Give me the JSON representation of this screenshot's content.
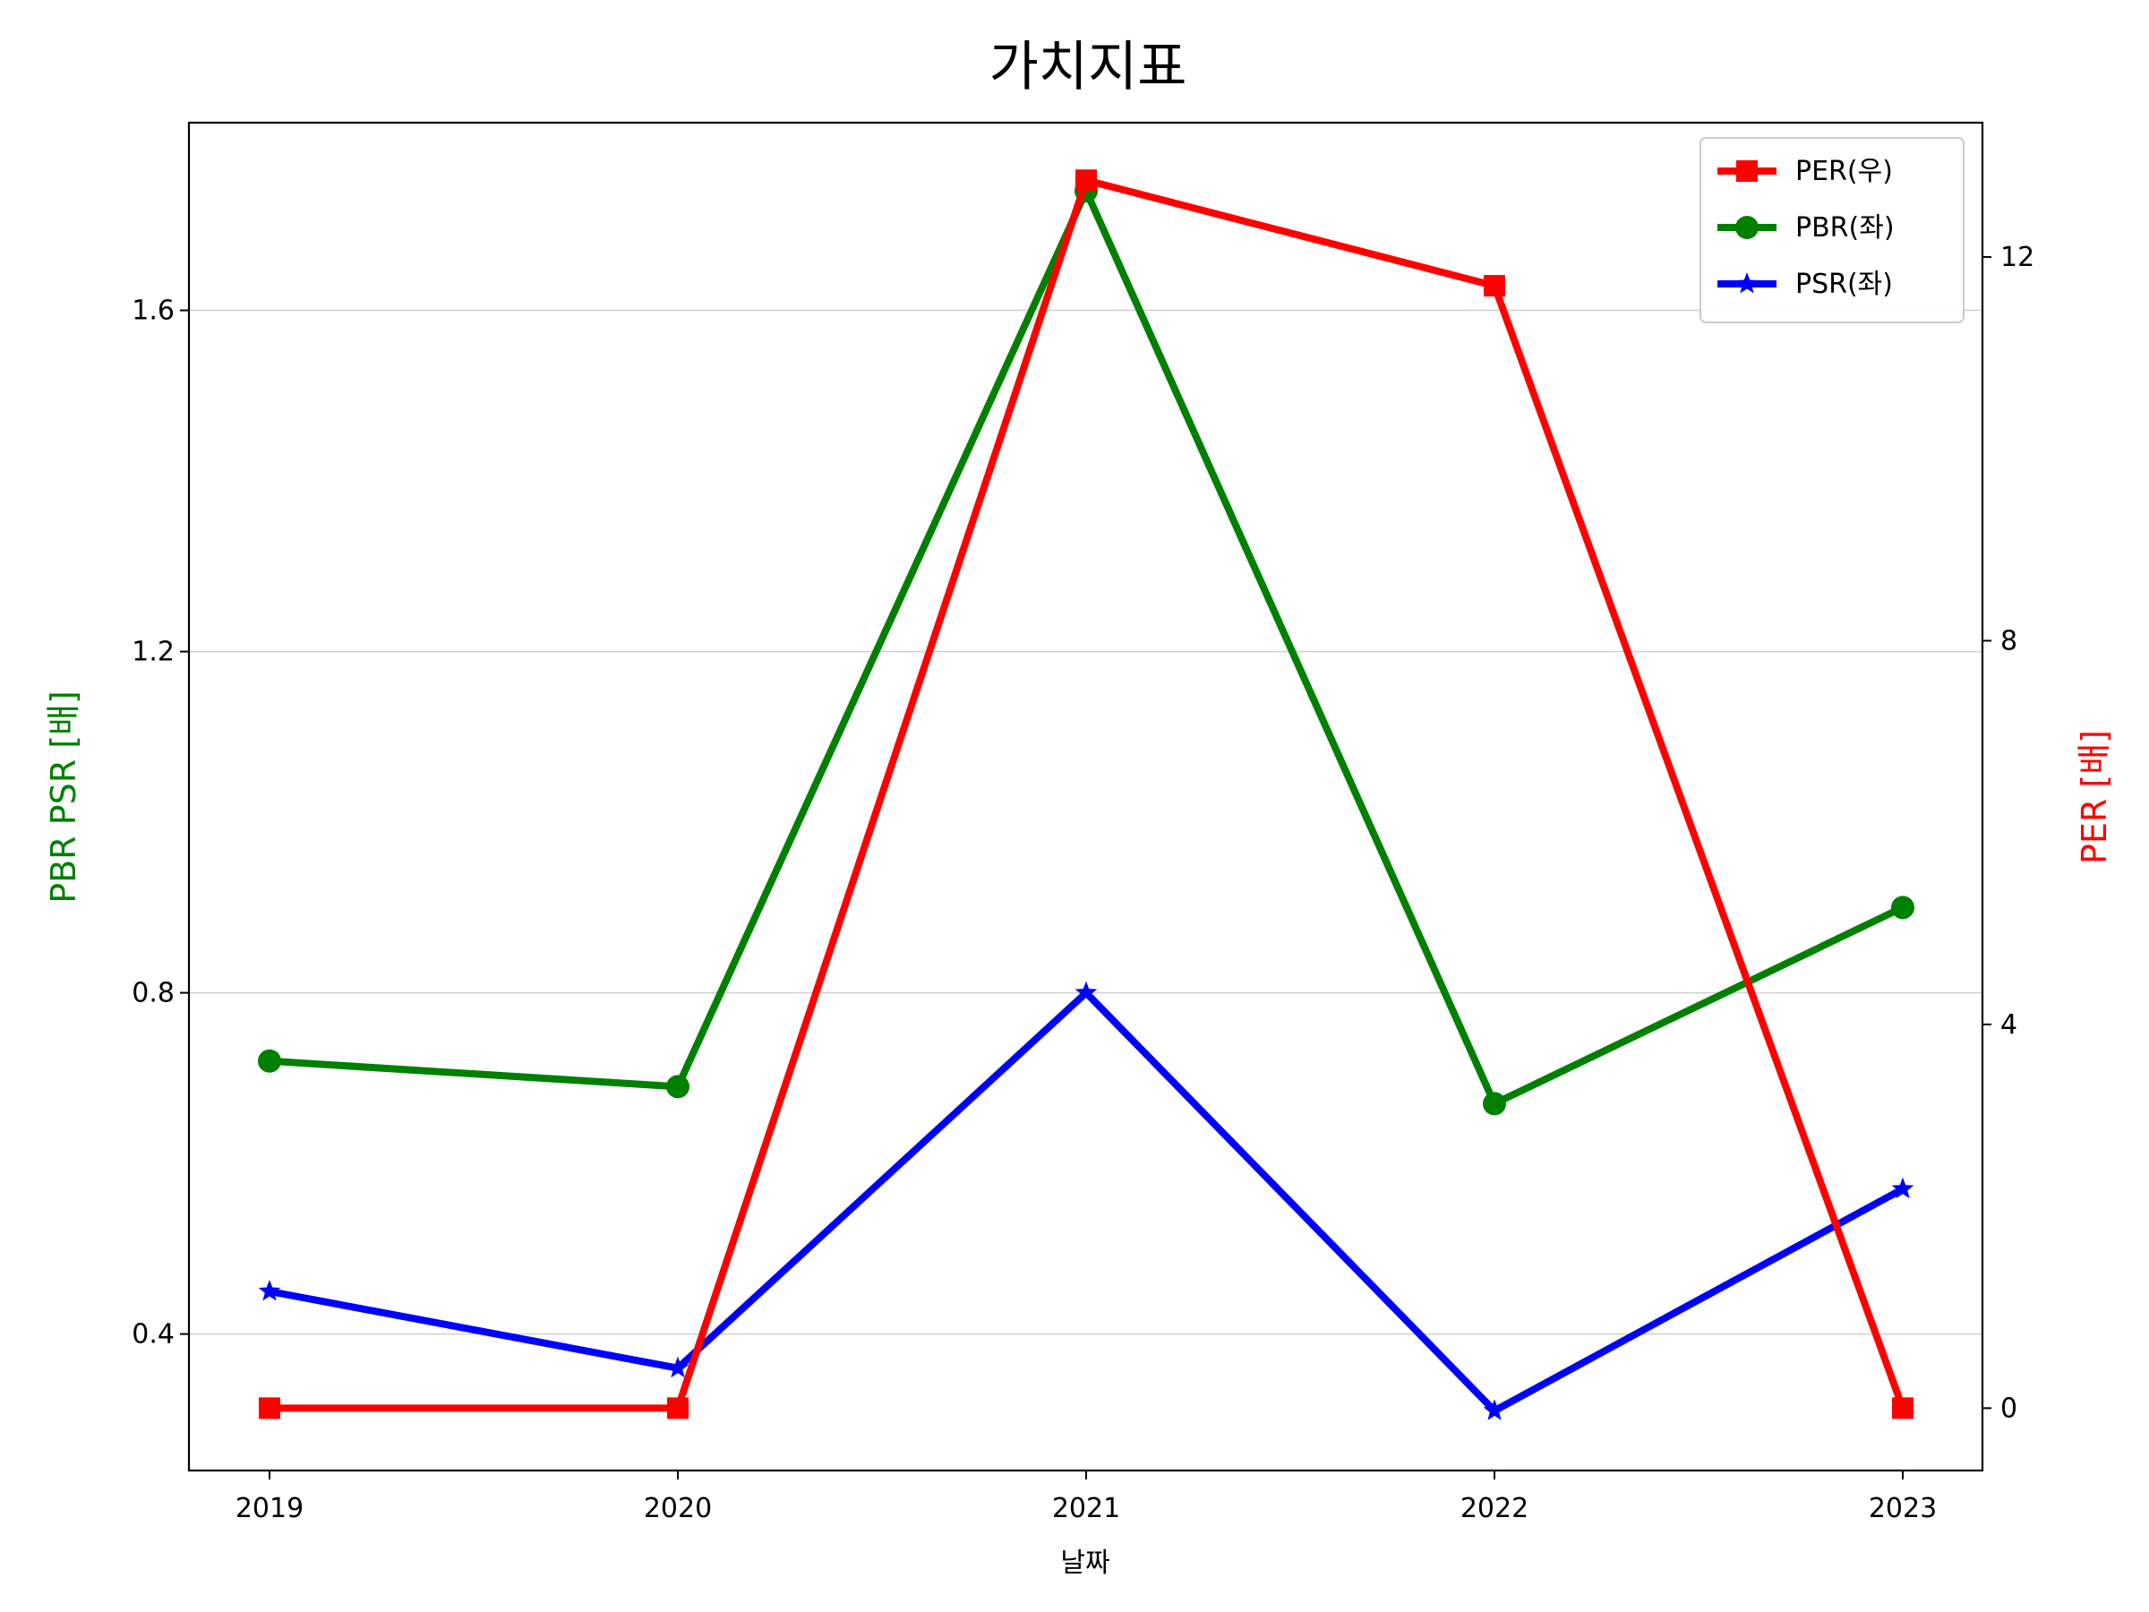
{
  "chart_data": {
    "type": "line",
    "title": "가치지표",
    "xlabel": "날짜",
    "ylabel_left": "PBR PSR [배]",
    "ylabel_right": "PER [배]",
    "categories": [
      "2019",
      "2020",
      "2021",
      "2022",
      "2023"
    ],
    "left_axis": {
      "ylim": [
        0.24,
        1.82
      ],
      "ticks": [
        0.4,
        0.8,
        1.2,
        1.6
      ]
    },
    "right_axis": {
      "ylim": [
        -0.65,
        13.4
      ],
      "ticks": [
        0,
        4,
        8,
        12
      ]
    },
    "grid": "horizontal (left axis ticks)",
    "legend_position": "top-right",
    "series": [
      {
        "name": "PER(우)",
        "axis": "right",
        "color": "#ff0000",
        "marker": "square",
        "values": [
          0,
          0,
          12.8,
          11.7,
          0
        ]
      },
      {
        "name": "PBR(좌)",
        "axis": "left",
        "color": "#008000",
        "marker": "circle",
        "values": [
          0.72,
          0.69,
          1.74,
          0.67,
          0.9
        ]
      },
      {
        "name": "PSR(좌)",
        "axis": "left",
        "color": "#0000ff",
        "marker": "star",
        "values": [
          0.45,
          0.36,
          0.8,
          0.31,
          0.57
        ]
      }
    ],
    "colors": {
      "left_label": "#008000",
      "right_label": "#ff0000"
    }
  }
}
